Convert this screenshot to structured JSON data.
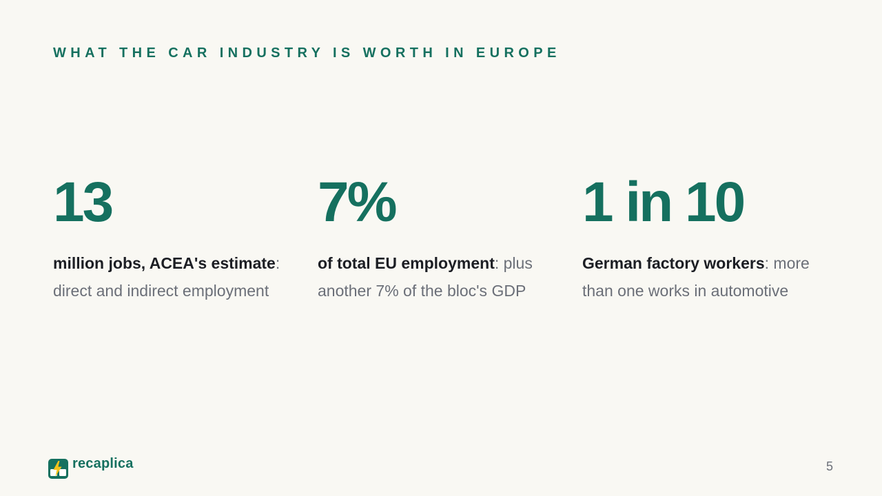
{
  "slide": {
    "kicker": "WHAT THE CAR INDUSTRY IS WORTH IN EUROPE",
    "page_number": "5"
  },
  "stats": [
    {
      "value": "13",
      "bold": "million jobs, ACEA's estimate",
      "rest": ": direct and indirect employment"
    },
    {
      "value": "7%",
      "bold": "of total EU employment",
      "rest": ": plus another 7% of the bloc's GDP"
    },
    {
      "value": "1 in 10",
      "bold": "German factory workers",
      "rest": ": more than one works in automotive"
    }
  ],
  "brand": {
    "name": "recaplica",
    "icon": "bolt-icon",
    "colors": {
      "accent": "#15705f",
      "bolt": "#f4c21b",
      "background": "#f9f8f3",
      "body_text": "#6b6f78",
      "bold_text": "#1c1e24"
    }
  }
}
